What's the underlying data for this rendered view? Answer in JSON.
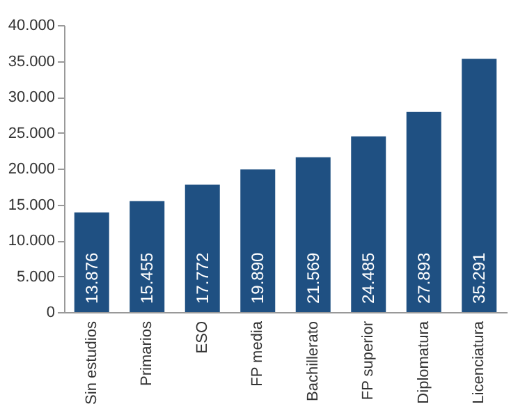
{
  "chart_data": {
    "type": "bar",
    "categories": [
      "Sin estudios",
      "Primarios",
      "ESO",
      "FP media",
      "Bachillerato",
      "FP superior",
      "Diplomatura",
      "Licenciatura"
    ],
    "values": [
      13876,
      15455,
      17772,
      19890,
      21569,
      24485,
      27893,
      35291
    ],
    "value_labels": [
      "13.876",
      "15.455",
      "17.772",
      "19.890",
      "21.569",
      "24.485",
      "27.893",
      "35.291"
    ],
    "color": "#1f5082",
    "ylim": [
      0,
      40000
    ],
    "yticks": [
      {
        "value": 0,
        "label": "0"
      },
      {
        "value": 5000,
        "label": "5.000"
      },
      {
        "value": 10000,
        "label": "10.000"
      },
      {
        "value": 15000,
        "label": "15.000"
      },
      {
        "value": 20000,
        "label": "20.000"
      },
      {
        "value": 25000,
        "label": "25.000"
      },
      {
        "value": 30000,
        "label": "30.000"
      },
      {
        "value": 35000,
        "label": "35.000"
      },
      {
        "value": 40000,
        "label": "40.000"
      }
    ],
    "grid": false
  }
}
